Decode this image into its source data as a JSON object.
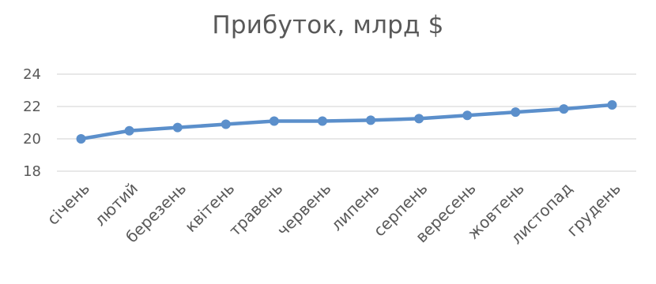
{
  "chart_data": {
    "type": "line",
    "title": "Прибуток, млрд $",
    "xlabel": "",
    "ylabel": "",
    "categories": [
      "січень",
      "лютий",
      "березень",
      "квітень",
      "травень",
      "червень",
      "липень",
      "серпень",
      "вересень",
      "жовтень",
      "листопад",
      "грудень"
    ],
    "series": [
      {
        "values": [
          20.0,
          20.5,
          20.7,
          20.9,
          21.1,
          21.1,
          21.15,
          21.25,
          21.45,
          21.65,
          21.85,
          22.1
        ],
        "color": "#5B8FCB"
      }
    ],
    "ylim": [
      18,
      24
    ],
    "yticks": [
      "18",
      "20",
      "22",
      "24"
    ],
    "grid": true,
    "legend": "none"
  }
}
